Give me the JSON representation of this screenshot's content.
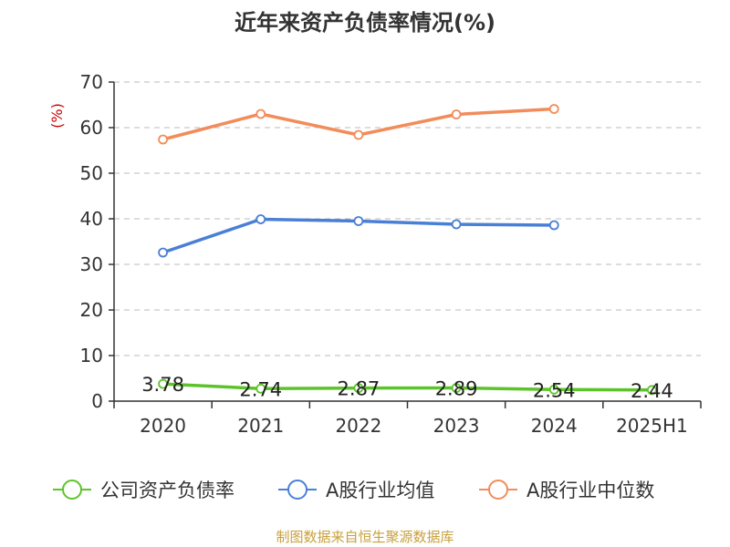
{
  "chart_data": {
    "type": "line",
    "title": "近年来资产负债率情况(%)",
    "ylabel": "(%)",
    "categories": [
      "2020",
      "2021",
      "2022",
      "2023",
      "2024",
      "2025H1"
    ],
    "yticks": [
      "0",
      "10",
      "20",
      "30",
      "40",
      "50",
      "60",
      "70"
    ],
    "ylim": [
      0,
      70
    ],
    "grid": true,
    "legend_position": "bottom",
    "series": [
      {
        "name": "公司资产负债率",
        "color": "#5cc42a",
        "values": [
          3.78,
          2.74,
          2.87,
          2.89,
          2.54,
          2.44
        ],
        "labels": [
          "3.78",
          "2.74",
          "2.87",
          "2.89",
          "2.54",
          "2.44"
        ]
      },
      {
        "name": "A股行业均值",
        "color": "#4a7fd6",
        "values": [
          32.6,
          39.9,
          39.5,
          38.8,
          38.6,
          null
        ]
      },
      {
        "name": "A股行业中位数",
        "color": "#f28c5a",
        "values": [
          57.4,
          63.0,
          58.4,
          62.9,
          64.1,
          null
        ]
      }
    ]
  },
  "source": "制图数据来自恒生聚源数据库"
}
